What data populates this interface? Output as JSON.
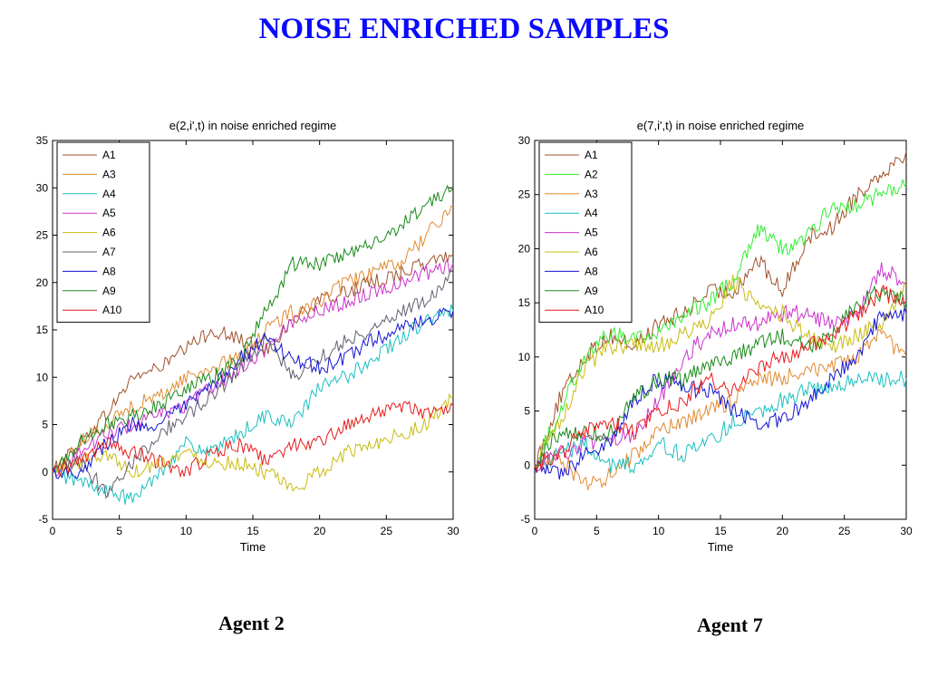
{
  "slide": {
    "title": "NOISE ENRICHED SAMPLES",
    "captions": [
      "Agent 2",
      "Agent 7"
    ]
  },
  "chart_data": [
    {
      "type": "line",
      "title": "e(2,i',t) in noise enriched regime",
      "xlabel": "Time",
      "ylabel": "",
      "xlim": [
        0,
        30
      ],
      "ylim": [
        -5,
        35
      ],
      "xticks": [
        0,
        5,
        10,
        15,
        20,
        25,
        30
      ],
      "yticks": [
        -5,
        0,
        5,
        10,
        15,
        20,
        25,
        30,
        35
      ],
      "grid": false,
      "legend": "top-left",
      "x": [
        0,
        2,
        4,
        6,
        8,
        10,
        12,
        14,
        16,
        18,
        20,
        22,
        24,
        26,
        28,
        30
      ],
      "series": [
        {
          "name": "A1",
          "color": "#a0522d",
          "values": [
            0,
            3,
            6,
            10,
            11,
            13,
            15,
            14,
            13,
            16,
            18,
            19,
            20,
            21,
            22,
            23
          ]
        },
        {
          "name": "A3",
          "color": "#e08a30",
          "values": [
            0,
            3,
            5,
            7,
            8,
            10,
            11,
            12,
            15,
            17,
            18,
            20,
            21,
            22,
            25,
            28
          ]
        },
        {
          "name": "A4",
          "color": "#1bbfbf",
          "values": [
            0,
            -1,
            -2,
            -3,
            0,
            3,
            2,
            4,
            6,
            5,
            9,
            10,
            12,
            14,
            16,
            17
          ]
        },
        {
          "name": "A5",
          "color": "#cc33cc",
          "values": [
            0,
            2,
            4,
            5,
            6,
            7,
            9,
            11,
            13,
            16,
            17,
            18,
            19,
            20,
            21,
            22
          ]
        },
        {
          "name": "A6",
          "color": "#c8bb10",
          "values": [
            0,
            1,
            2,
            0,
            1,
            2,
            1,
            1,
            0,
            -2,
            0,
            2,
            3,
            4,
            5,
            8
          ]
        },
        {
          "name": "A7",
          "color": "#606070",
          "values": [
            0,
            1,
            -2,
            1,
            4,
            6,
            8,
            11,
            14,
            10,
            12,
            14,
            15,
            17,
            18,
            21
          ]
        },
        {
          "name": "A8",
          "color": "#1414d2",
          "values": [
            0,
            0,
            3,
            5,
            5,
            7,
            9,
            12,
            14,
            12,
            11,
            12,
            14,
            15,
            16,
            17
          ]
        },
        {
          "name": "A9",
          "color": "#1a8a1a",
          "values": [
            0,
            3,
            5,
            6,
            7,
            9,
            10,
            12,
            17,
            22,
            22,
            23,
            24,
            26,
            28,
            30
          ]
        },
        {
          "name": "A10",
          "color": "#e81c1c",
          "values": [
            0,
            1,
            3,
            2,
            1,
            0,
            2,
            3,
            1,
            3,
            3,
            5,
            6,
            7,
            6,
            7
          ]
        }
      ]
    },
    {
      "type": "line",
      "title": "e(7,i',t) in noise enriched regime",
      "xlabel": "Time",
      "ylabel": "",
      "xlim": [
        0,
        30
      ],
      "ylim": [
        -5,
        30
      ],
      "xticks": [
        0,
        5,
        10,
        15,
        20,
        25,
        30
      ],
      "yticks": [
        -5,
        0,
        5,
        10,
        15,
        20,
        25,
        30
      ],
      "grid": false,
      "legend": "top-left",
      "x": [
        0,
        2,
        4,
        6,
        8,
        10,
        12,
        14,
        16,
        18,
        20,
        22,
        24,
        26,
        28,
        30
      ],
      "series": [
        {
          "name": "A1",
          "color": "#a0522d",
          "values": [
            0,
            6,
            10,
            12,
            11,
            13,
            14,
            16,
            16,
            19,
            16,
            21,
            22,
            25,
            27,
            29
          ]
        },
        {
          "name": "A2",
          "color": "#33ee33",
          "values": [
            0,
            5,
            10,
            12,
            12,
            12,
            14,
            15,
            17,
            22,
            20,
            21,
            24,
            24,
            25,
            26
          ]
        },
        {
          "name": "A3",
          "color": "#e08a30",
          "values": [
            0,
            1,
            -2,
            -1,
            1,
            3,
            4,
            5,
            6,
            8,
            8,
            9,
            9,
            10,
            12,
            10
          ]
        },
        {
          "name": "A4",
          "color": "#1bbfbf",
          "values": [
            0,
            1,
            2,
            0,
            0,
            2,
            1,
            2,
            4,
            5,
            6,
            7,
            7,
            8,
            8,
            8
          ]
        },
        {
          "name": "A5",
          "color": "#cc33cc",
          "values": [
            0,
            1,
            2,
            2,
            3,
            6,
            10,
            12,
            13,
            13,
            14,
            14,
            13,
            14,
            18,
            17
          ]
        },
        {
          "name": "A6",
          "color": "#c8bb10",
          "values": [
            0,
            4,
            9,
            11,
            11,
            11,
            12,
            13,
            17,
            15,
            14,
            12,
            11,
            12,
            13,
            17
          ]
        },
        {
          "name": "A8",
          "color": "#1414d2",
          "values": [
            0,
            -1,
            1,
            2,
            6,
            8,
            7,
            7,
            5,
            4,
            4,
            6,
            8,
            10,
            14,
            14
          ]
        },
        {
          "name": "A9",
          "color": "#1a8a1a",
          "values": [
            0,
            3,
            3,
            3,
            6,
            8,
            8,
            9,
            10,
            11,
            12,
            11,
            12,
            15,
            16,
            15
          ]
        },
        {
          "name": "A10",
          "color": "#e81c1c",
          "values": [
            0,
            1,
            3,
            4,
            3,
            5,
            6,
            8,
            7,
            9,
            10,
            11,
            12,
            14,
            16,
            15
          ]
        }
      ]
    }
  ]
}
